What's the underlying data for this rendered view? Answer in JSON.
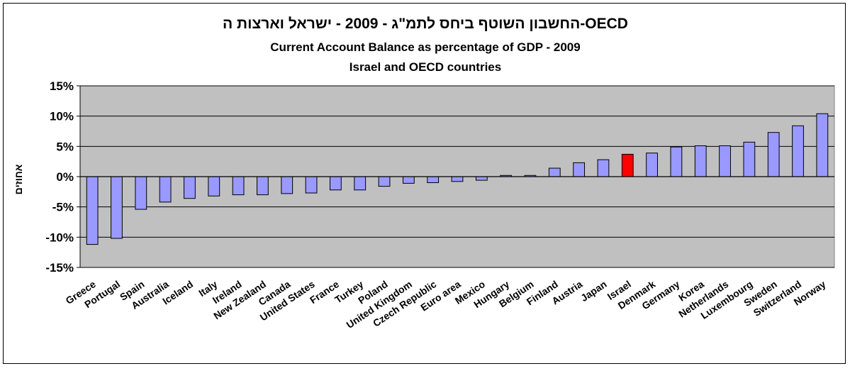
{
  "chart_data": {
    "type": "bar",
    "title_lines": [
      "OECD-החשבון השוטף ביחס לתמ\"ג - 2009 - ישראל וארצות ה",
      "Current Account Balance as percentage of GDP - 2009",
      "Israel and OECD countries"
    ],
    "xlabel": "",
    "ylabel": "אחוזים",
    "ylim": [
      -15,
      15
    ],
    "yticks": [
      15,
      10,
      5,
      0,
      -5,
      -10,
      -15
    ],
    "ytick_labels": [
      "15%",
      "10%",
      "5%",
      "0%",
      "-5%",
      "-10%",
      "-15%"
    ],
    "grid": true,
    "legend": "none",
    "colors": {
      "bar": "#9999FF",
      "highlight": "#FF0000",
      "plot_background": "#C0C0C0",
      "gridline": "#000000"
    },
    "highlight_category": "Israel",
    "categories": [
      "Greece",
      "Portugal",
      "Spain",
      "Australia",
      "Iceland",
      "Italy",
      "Ireland",
      "New Zealand",
      "Canada",
      "United States",
      "France",
      "Turkey",
      "Poland",
      "United Kingdom",
      "Czech Republic",
      "Euro area",
      "Mexico",
      "Hungary",
      "Belgium",
      "Finland",
      "Austria",
      "Japan",
      "Israel",
      "Denmark",
      "Germany",
      "Korea",
      "Netherlands",
      "Luxembourg",
      "Sweden",
      "Switzerland",
      "Norway"
    ],
    "values": [
      -11.2,
      -10.2,
      -5.4,
      -4.2,
      -3.6,
      -3.2,
      -3.0,
      -3.0,
      -2.8,
      -2.7,
      -2.2,
      -2.2,
      -1.6,
      -1.1,
      -1.0,
      -0.8,
      -0.6,
      0.2,
      0.2,
      1.4,
      2.3,
      2.8,
      3.7,
      3.9,
      4.9,
      5.1,
      5.1,
      5.7,
      7.3,
      8.4,
      10.4
    ]
  }
}
